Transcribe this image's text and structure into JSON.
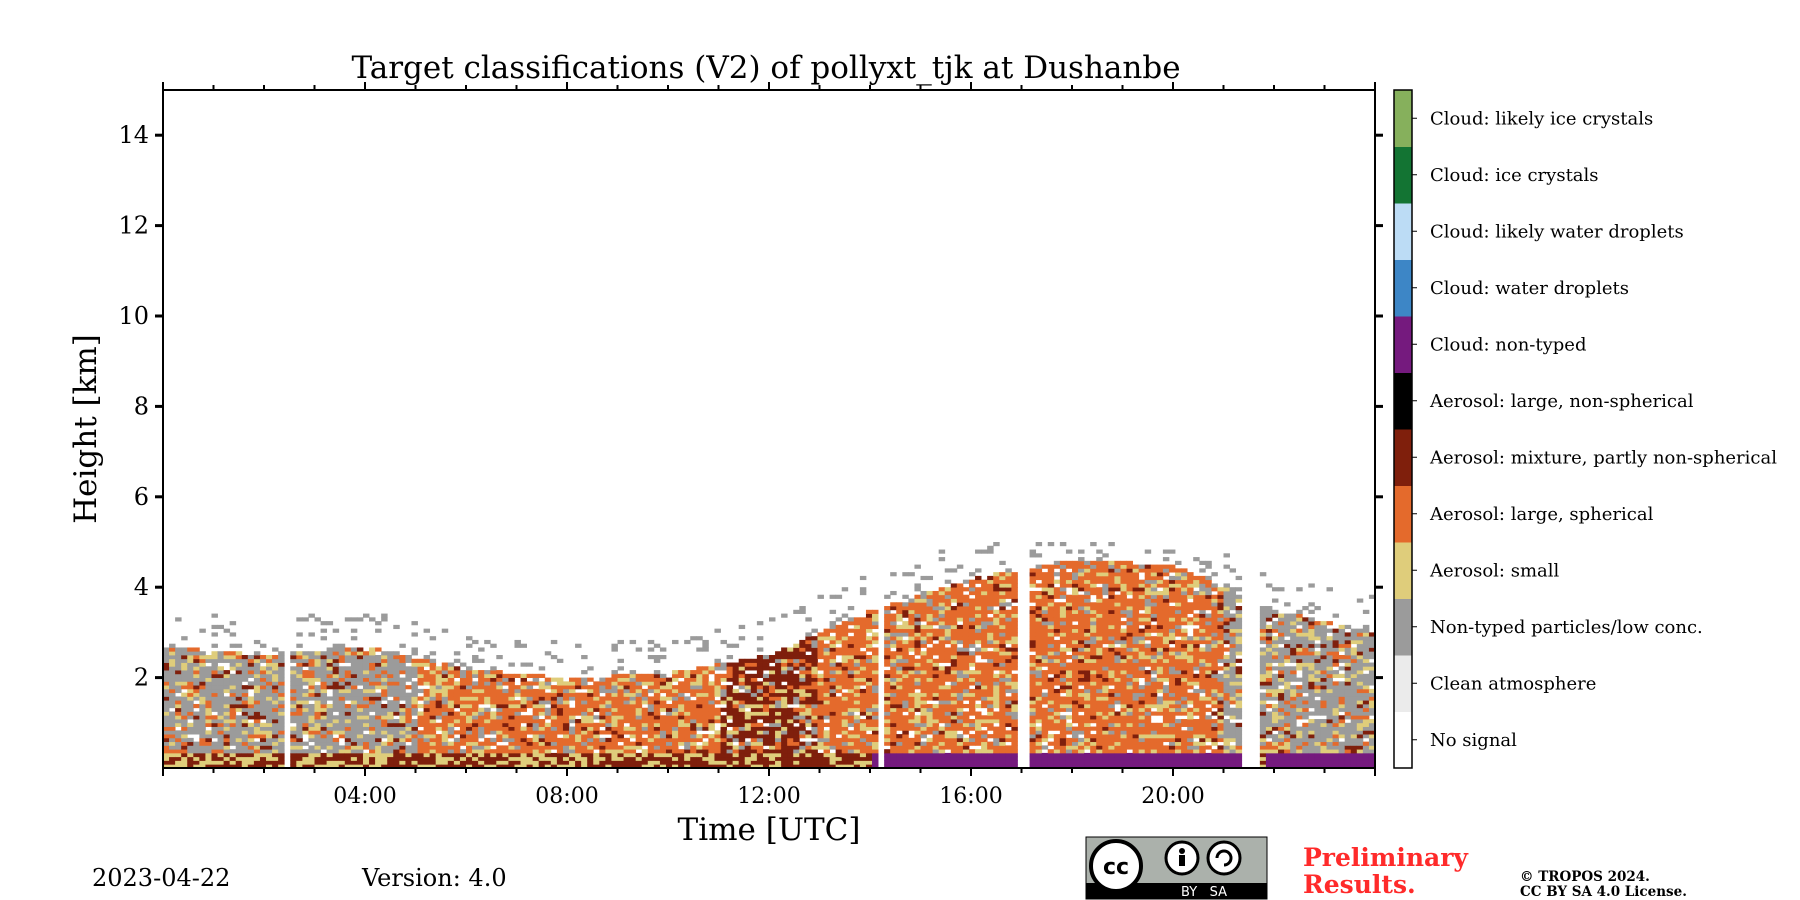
{
  "chart_data": {
    "type": "heatmap",
    "title": "Target classifications (V2) of pollyxt_tjk at Dushanbe",
    "xlabel": "Time [UTC]",
    "ylabel": "Height [km]",
    "xlim_hours": [
      0,
      24
    ],
    "ylim_km": [
      0,
      15
    ],
    "x_major_ticks_hours": [
      4,
      8,
      12,
      16,
      20
    ],
    "x_tick_labels": [
      "04:00",
      "08:00",
      "12:00",
      "16:00",
      "20:00"
    ],
    "y_ticks_km": [
      2,
      4,
      6,
      8,
      10,
      12,
      14
    ],
    "y_tick_labels": [
      "2",
      "4",
      "6",
      "8",
      "10",
      "12",
      "14"
    ],
    "classes": [
      {
        "id": 0,
        "label": "No signal",
        "color": "#ffffff"
      },
      {
        "id": 1,
        "label": "Clean atmosphere",
        "color": "#ebebeb"
      },
      {
        "id": 2,
        "label": "Non-typed particles/low conc.",
        "color": "#9b9b9b"
      },
      {
        "id": 3,
        "label": "Aerosol: small",
        "color": "#dfcd7b"
      },
      {
        "id": 4,
        "label": "Aerosol: large, spherical",
        "color": "#e46a2c"
      },
      {
        "id": 5,
        "label": "Aerosol: mixture, partly non-spherical",
        "color": "#7f1f0c"
      },
      {
        "id": 6,
        "label": "Aerosol: large, non-spherical",
        "color": "#000000"
      },
      {
        "id": 7,
        "label": "Cloud: non-typed",
        "color": "#751a7e"
      },
      {
        "id": 8,
        "label": "Cloud: water droplets",
        "color": "#3d86c6"
      },
      {
        "id": 9,
        "label": "Cloud: likely water droplets",
        "color": "#bcdcf5"
      },
      {
        "id": 10,
        "label": "Cloud: ice crystals",
        "color": "#137433"
      },
      {
        "id": 11,
        "label": "Cloud: likely ice crystals",
        "color": "#86b05c"
      }
    ],
    "layer_top_km": [
      {
        "hour": 0.0,
        "top": 2.7,
        "dominant": "Non-typed particles/low conc."
      },
      {
        "hour": 2.0,
        "top": 2.5,
        "dominant": "Non-typed particles/low conc."
      },
      {
        "hour": 4.0,
        "top": 2.7,
        "dominant": "Non-typed particles/low conc."
      },
      {
        "hour": 6.0,
        "top": 2.2,
        "dominant": "Aerosol: large, spherical"
      },
      {
        "hour": 8.0,
        "top": 2.0,
        "dominant": "Aerosol: large, spherical"
      },
      {
        "hour": 10.0,
        "top": 2.1,
        "dominant": "Aerosol: large, spherical"
      },
      {
        "hour": 12.0,
        "top": 2.5,
        "dominant": "Aerosol: mixture, partly non-spherical"
      },
      {
        "hour": 14.0,
        "top": 3.5,
        "dominant": "Aerosol: large, spherical"
      },
      {
        "hour": 16.0,
        "top": 4.2,
        "dominant": "Aerosol: large, spherical"
      },
      {
        "hour": 18.0,
        "top": 4.6,
        "dominant": "Aerosol: large, spherical"
      },
      {
        "hour": 20.0,
        "top": 4.5,
        "dominant": "Aerosol: large, spherical"
      },
      {
        "hour": 22.0,
        "top": 3.5,
        "dominant": "Non-typed particles/low conc."
      },
      {
        "hour": 24.0,
        "top": 3.0,
        "dominant": "Non-typed particles/low conc."
      }
    ],
    "no_signal_gaps_hours": [
      [
        0.7,
        0.75
      ],
      [
        0.9,
        0.95
      ],
      [
        1.4,
        1.45
      ],
      [
        2.35,
        2.5
      ],
      [
        14.15,
        14.3
      ],
      [
        16.95,
        17.1
      ],
      [
        21.4,
        21.7
      ]
    ],
    "near_surface_cloud_hours": [
      [
        14.1,
        21.3
      ],
      [
        21.8,
        24.0
      ]
    ]
  },
  "footer": {
    "date": "2023-04-22",
    "version": "Version: 4.0",
    "license_badge_text": "BY   SA",
    "preliminary_line1": "Preliminary",
    "preliminary_line2": "Results.",
    "copyright_line1": "© TROPOS 2024.",
    "copyright_line2": "CC BY SA 4.0 License."
  }
}
